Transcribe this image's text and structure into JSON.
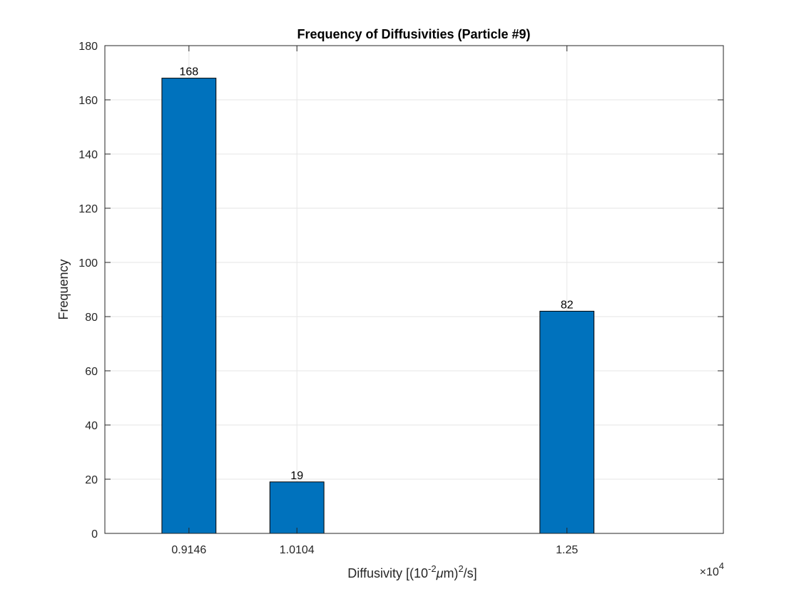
{
  "chart_data": {
    "type": "bar",
    "title": "Frequency of Diffusivities (Particle #9)",
    "xlabel": {
      "prefix": "Diffusivity [(10",
      "sup1": "-2",
      "mu": "μ",
      "mid": "m)",
      "sup2": "2",
      "suffix": "/s]"
    },
    "ylabel": "Frequency",
    "x_exponent": {
      "base": "×10",
      "power": "4"
    },
    "x_tick_labels": [
      "0.9146",
      "1.0104",
      "1.25"
    ],
    "x_ticks": [
      0.9146,
      1.0104,
      1.25
    ],
    "xlim": [
      0.84,
      1.3888
    ],
    "ylim": [
      0,
      180
    ],
    "y_ticks": [
      0,
      20,
      40,
      60,
      80,
      100,
      120,
      140,
      160,
      180
    ],
    "bar_width": 0.048,
    "points": [
      {
        "x": 0.9146,
        "value": 168,
        "label": "168"
      },
      {
        "x": 1.0104,
        "value": 19,
        "label": "19"
      },
      {
        "x": 1.25,
        "value": 82,
        "label": "82"
      }
    ],
    "grid": true,
    "bar_color": "#0072BD",
    "axis_color": "#262626",
    "grid_color": "#E6E6E6"
  }
}
